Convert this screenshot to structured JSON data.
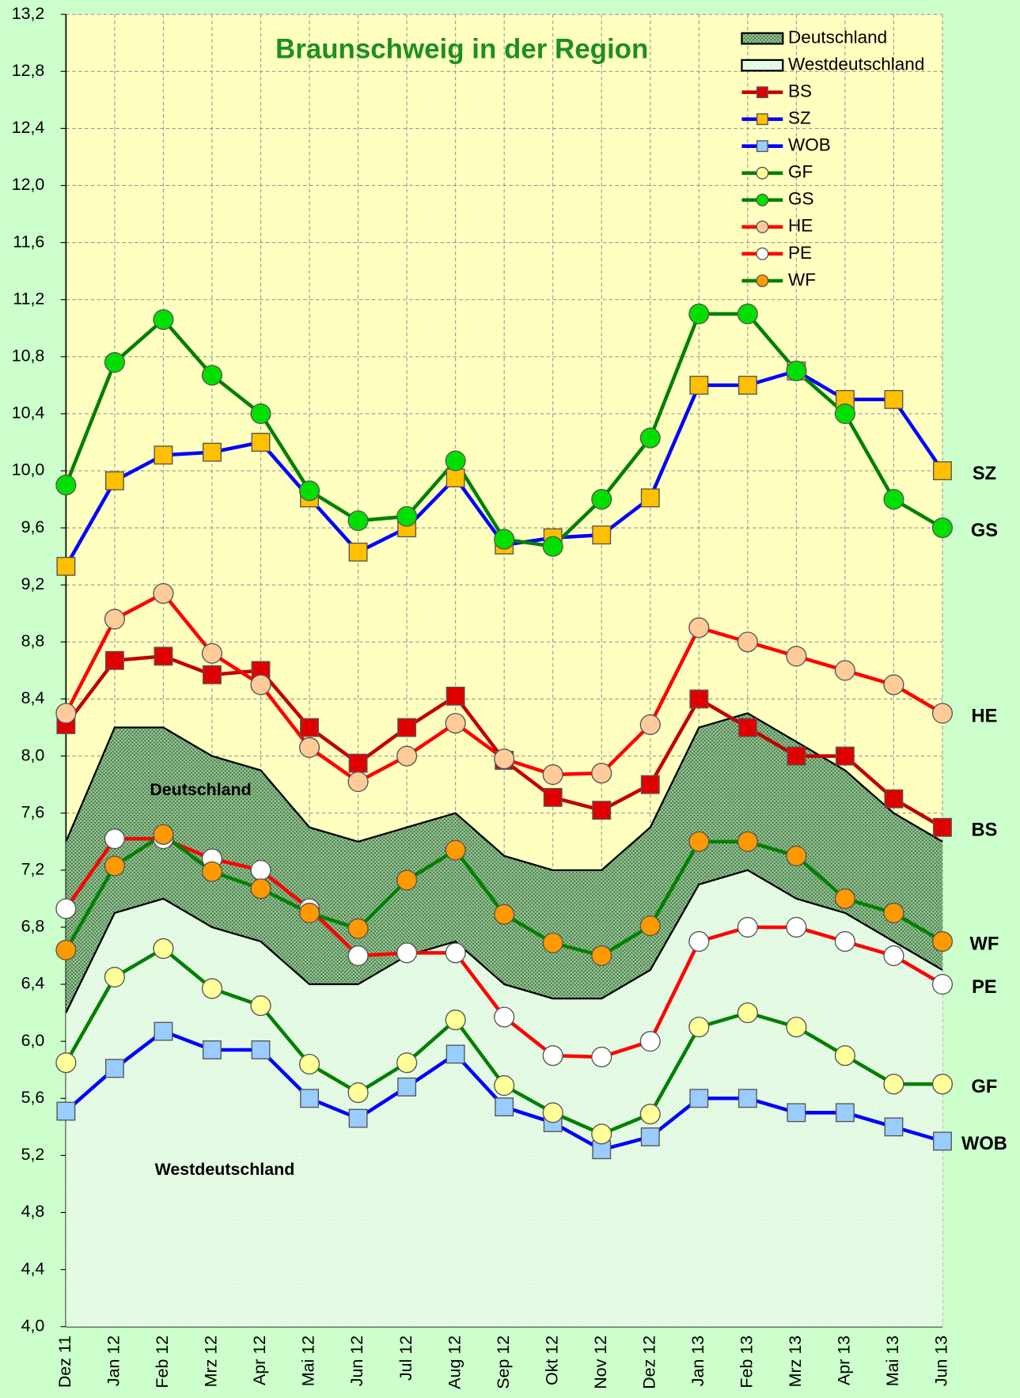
{
  "chart_data": {
    "type": "line",
    "title": "Braunschweig in der Region",
    "categories": [
      "Dez 11",
      "Jan 12",
      "Feb 12",
      "Mrz 12",
      "Apr 12",
      "Mai 12",
      "Jun 12",
      "Jul 12",
      "Aug 12",
      "Sep 12",
      "Okt 12",
      "Nov 12",
      "Dez 12",
      "Jan 13",
      "Feb 13",
      "Mrz 13",
      "Apr 13",
      "Mai 13",
      "Jun 13"
    ],
    "ylim": [
      4.0,
      13.2
    ],
    "yticks": [
      {
        "value": 4.0,
        "label": "4,0"
      },
      {
        "value": 4.4,
        "label": "4,4"
      },
      {
        "value": 4.8,
        "label": "4,8"
      },
      {
        "value": 5.2,
        "label": "5,2"
      },
      {
        "value": 5.6,
        "label": "5,6"
      },
      {
        "value": 6.0,
        "label": "6,0"
      },
      {
        "value": 6.4,
        "label": "6,4"
      },
      {
        "value": 6.8,
        "label": "6,8"
      },
      {
        "value": 7.2,
        "label": "7,2"
      },
      {
        "value": 7.6,
        "label": "7,6"
      },
      {
        "value": 8.0,
        "label": "8,0"
      },
      {
        "value": 8.4,
        "label": "8,4"
      },
      {
        "value": 8.8,
        "label": "8,8"
      },
      {
        "value": 9.2,
        "label": "9,2"
      },
      {
        "value": 9.6,
        "label": "9,6"
      },
      {
        "value": 10.0,
        "label": "10,0"
      },
      {
        "value": 10.4,
        "label": "10,4"
      },
      {
        "value": 10.8,
        "label": "10,8"
      },
      {
        "value": 11.2,
        "label": "11,2"
      },
      {
        "value": 11.6,
        "label": "11,6"
      },
      {
        "value": 12.0,
        "label": "12,0"
      },
      {
        "value": 12.4,
        "label": "12,4"
      },
      {
        "value": 12.8,
        "label": "12,8"
      },
      {
        "value": 13.2,
        "label": "13,2"
      }
    ],
    "grid": true,
    "legend": "upper right",
    "areas": [
      {
        "name": "Deutschland",
        "color": "#7fae7f",
        "values": [
          7.4,
          8.2,
          8.2,
          8.0,
          7.9,
          7.5,
          7.4,
          7.5,
          7.6,
          7.3,
          7.2,
          7.2,
          7.5,
          8.2,
          8.3,
          8.1,
          7.9,
          7.6,
          7.4
        ]
      },
      {
        "name": "Westdeutschland",
        "color": "#e4fae4",
        "values": [
          6.2,
          6.9,
          7.0,
          6.8,
          6.7,
          6.4,
          6.4,
          6.6,
          6.7,
          6.4,
          6.3,
          6.3,
          6.5,
          7.1,
          7.2,
          7.0,
          6.9,
          6.7,
          6.5
        ]
      }
    ],
    "series": [
      {
        "name": "BS",
        "color": "#c00000",
        "marker": "square",
        "marker_color": "#e00000",
        "values": [
          8.22,
          8.67,
          8.7,
          8.57,
          8.6,
          8.2,
          7.95,
          8.2,
          8.42,
          7.97,
          7.71,
          7.62,
          7.8,
          8.4,
          8.2,
          8.0,
          8.0,
          7.7,
          7.5
        ]
      },
      {
        "name": "SZ",
        "color": "#0000ff",
        "marker": "square",
        "marker_color": "#ffc000",
        "values": [
          9.33,
          9.93,
          10.11,
          10.13,
          10.2,
          9.81,
          9.43,
          9.6,
          9.95,
          9.48,
          9.53,
          9.55,
          9.81,
          10.6,
          10.6,
          10.7,
          10.5,
          10.5,
          10.0
        ]
      },
      {
        "name": "WOB",
        "color": "#0000ff",
        "marker": "square",
        "marker_color": "#99ccff",
        "values": [
          5.51,
          5.81,
          6.07,
          5.94,
          5.94,
          5.6,
          5.46,
          5.68,
          5.91,
          5.54,
          5.43,
          5.24,
          5.33,
          5.6,
          5.6,
          5.5,
          5.5,
          5.4,
          5.3
        ]
      },
      {
        "name": "GF",
        "color": "#008000",
        "marker": "circle",
        "marker_color": "#ffff99",
        "values": [
          5.85,
          6.45,
          6.65,
          6.37,
          6.25,
          5.84,
          5.64,
          5.85,
          6.15,
          5.69,
          5.5,
          5.35,
          5.49,
          6.1,
          6.2,
          6.1,
          5.9,
          5.7,
          5.7
        ]
      },
      {
        "name": "GS",
        "color": "#008000",
        "marker": "circle",
        "marker_color": "#00e000",
        "values": [
          9.9,
          10.76,
          11.06,
          10.67,
          10.4,
          9.86,
          9.65,
          9.68,
          10.07,
          9.52,
          9.47,
          9.8,
          10.23,
          11.1,
          11.1,
          10.7,
          10.4,
          9.8,
          9.6
        ]
      },
      {
        "name": "HE",
        "color": "#ff0000",
        "marker": "circle",
        "marker_color": "#ffcc99",
        "values": [
          8.3,
          8.96,
          9.14,
          8.72,
          8.5,
          8.06,
          7.82,
          8.0,
          8.23,
          7.98,
          7.87,
          7.88,
          8.22,
          8.9,
          8.8,
          8.7,
          8.6,
          8.5,
          8.3
        ]
      },
      {
        "name": "PE",
        "color": "#ff0000",
        "marker": "circle",
        "marker_color": "#ffffff",
        "values": [
          6.93,
          7.42,
          7.42,
          7.28,
          7.2,
          6.93,
          6.6,
          6.62,
          6.62,
          6.17,
          5.9,
          5.89,
          6.0,
          6.7,
          6.8,
          6.8,
          6.7,
          6.6,
          6.4
        ]
      },
      {
        "name": "WF",
        "color": "#008000",
        "marker": "circle",
        "marker_color": "#ff9900",
        "values": [
          6.64,
          7.23,
          7.45,
          7.19,
          7.07,
          6.9,
          6.79,
          7.13,
          7.34,
          6.89,
          6.69,
          6.6,
          6.81,
          7.4,
          7.4,
          7.3,
          7.0,
          6.9,
          6.7
        ]
      }
    ]
  }
}
